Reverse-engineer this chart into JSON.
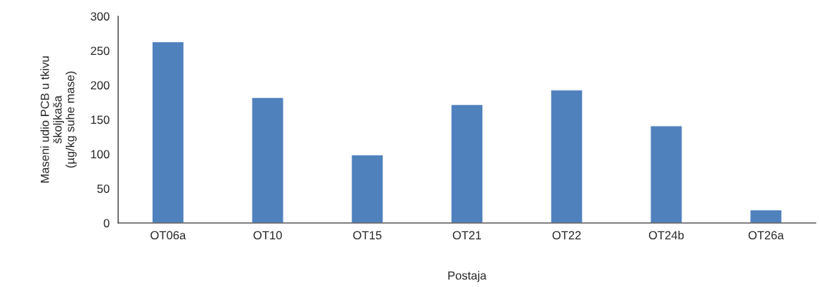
{
  "chart_data": {
    "type": "bar",
    "xlabel": "Postaja",
    "ylabel": "Maseni udio PCB u tkivu\nškoljkaša\n(µg/kg suhe mase)",
    "categories": [
      "OT06a",
      "OT10",
      "OT15",
      "OT21",
      "OT22",
      "OT24b",
      "OT26a"
    ],
    "values": [
      263,
      182,
      99,
      172,
      193,
      141,
      19
    ],
    "color": "#4f81bd",
    "ylim": [
      0,
      300
    ],
    "yticks": [
      0,
      50,
      100,
      150,
      200,
      250,
      300
    ],
    "grid": false,
    "legend": false
  }
}
